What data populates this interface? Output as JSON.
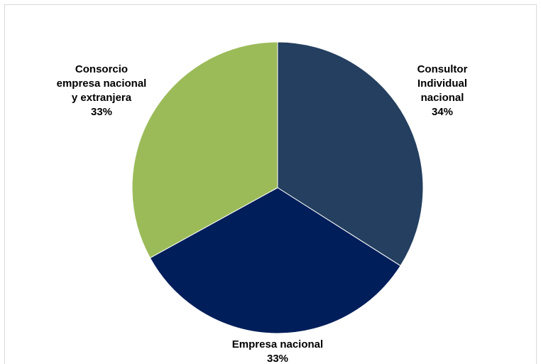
{
  "chart_data": {
    "type": "pie",
    "title": "",
    "slices": [
      {
        "label_lines": [
          "Consultor",
          "Individual",
          "nacional"
        ],
        "value": 34,
        "percent_label": "34%",
        "color": "#243f5f"
      },
      {
        "label_lines": [
          "Empresa nacional"
        ],
        "value": 33,
        "percent_label": "33%",
        "color": "#001e5a"
      },
      {
        "label_lines": [
          "Consorcio",
          "empresa nacional",
          "y extranjera"
        ],
        "value": 33,
        "percent_label": "33%",
        "color": "#9bbb59"
      }
    ],
    "legend": "none",
    "data_labels": "outside"
  }
}
